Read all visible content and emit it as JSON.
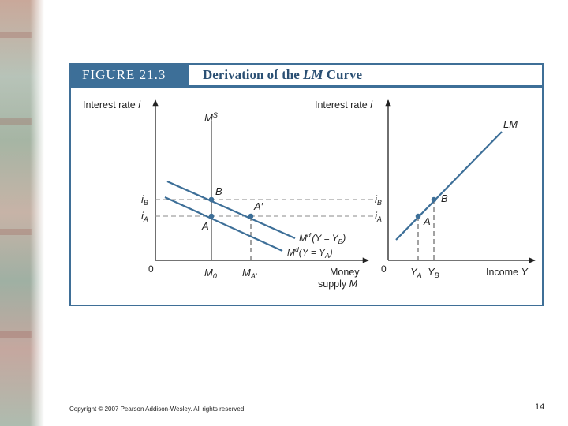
{
  "slide": {
    "copyright": "Copyright © 2007 Pearson Addison-Wesley. All rights reserved.",
    "page_number": "14"
  },
  "figure": {
    "label": "FIGURE 21.3",
    "title_prefix": "Derivation of the ",
    "title_italic": "LM",
    "title_suffix": " Curve"
  },
  "left_panel": {
    "y_axis_label": "Interest rate ",
    "y_axis_var": "i",
    "x_axis_label_line1": "Money",
    "x_axis_label_line2": "supply ",
    "x_axis_var": "M",
    "origin": "0",
    "ms_label": "M",
    "ms_sup": "S",
    "i_B": "i",
    "i_B_sub": "B",
    "i_A": "i",
    "i_A_sub": "A",
    "point_B": "B",
    "point_A": "A",
    "point_A_prime": "A′",
    "m0": "M",
    "m0_sub": "0",
    "ma": "M",
    "ma_sub": "A′",
    "md_prime_label": "M",
    "md_prime_sup": "d′",
    "md_prime_eq": "(Y = Y",
    "md_prime_eq_sub": "B",
    "md_label": "M",
    "md_sup": "d",
    "md_eq": "(Y = Y",
    "md_eq_sub": "A"
  },
  "right_panel": {
    "y_axis_label": "Interest rate ",
    "y_axis_var": "i",
    "x_axis_label": "Income ",
    "x_axis_var": "Y",
    "origin": "0",
    "lm_label": "LM",
    "i_B": "i",
    "i_B_sub": "B",
    "i_A": "i",
    "i_A_sub": "A",
    "point_B": "B",
    "point_A": "A",
    "y_A": "Y",
    "y_A_sub": "A",
    "y_B": "Y",
    "y_B_sub": "B"
  },
  "colors": {
    "frame": "#3f6f97",
    "curve": "#3d6f98",
    "axis": "#222222",
    "dash": "#8a8a8a"
  }
}
